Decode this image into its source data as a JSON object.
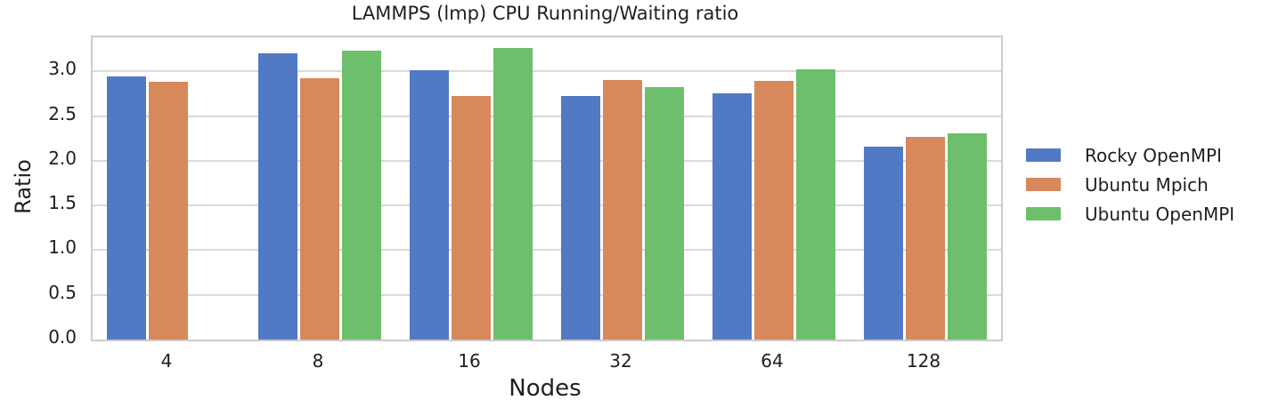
{
  "chart_data": {
    "type": "bar",
    "title": "LAMMPS (lmp) CPU Running/Waiting ratio",
    "xlabel": "Nodes",
    "ylabel": "Ratio",
    "categories": [
      "4",
      "8",
      "16",
      "32",
      "64",
      "128"
    ],
    "series": [
      {
        "name": "Rocky OpenMPI",
        "color": "#5279c4",
        "values": [
          2.94,
          3.2,
          3.01,
          2.72,
          2.75,
          2.16
        ]
      },
      {
        "name": "Ubuntu Mpich",
        "color": "#d7895c",
        "values": [
          2.88,
          2.92,
          2.72,
          2.9,
          2.89,
          2.27
        ]
      },
      {
        "name": "Ubuntu OpenMPI",
        "color": "#6dbf6c",
        "values": [
          null,
          3.23,
          3.26,
          2.82,
          3.02,
          2.31
        ]
      }
    ],
    "yticks": [
      "0.0",
      "0.5",
      "1.0",
      "1.5",
      "2.0",
      "2.5",
      "3.0"
    ],
    "ylim": [
      0,
      3.38
    ],
    "grid": "horizontal",
    "legend_position": "right",
    "colors": {
      "grid": "#d9d9d9",
      "spine": "#cccccc",
      "text": "#1f1f1f",
      "background": "#ffffff"
    }
  }
}
